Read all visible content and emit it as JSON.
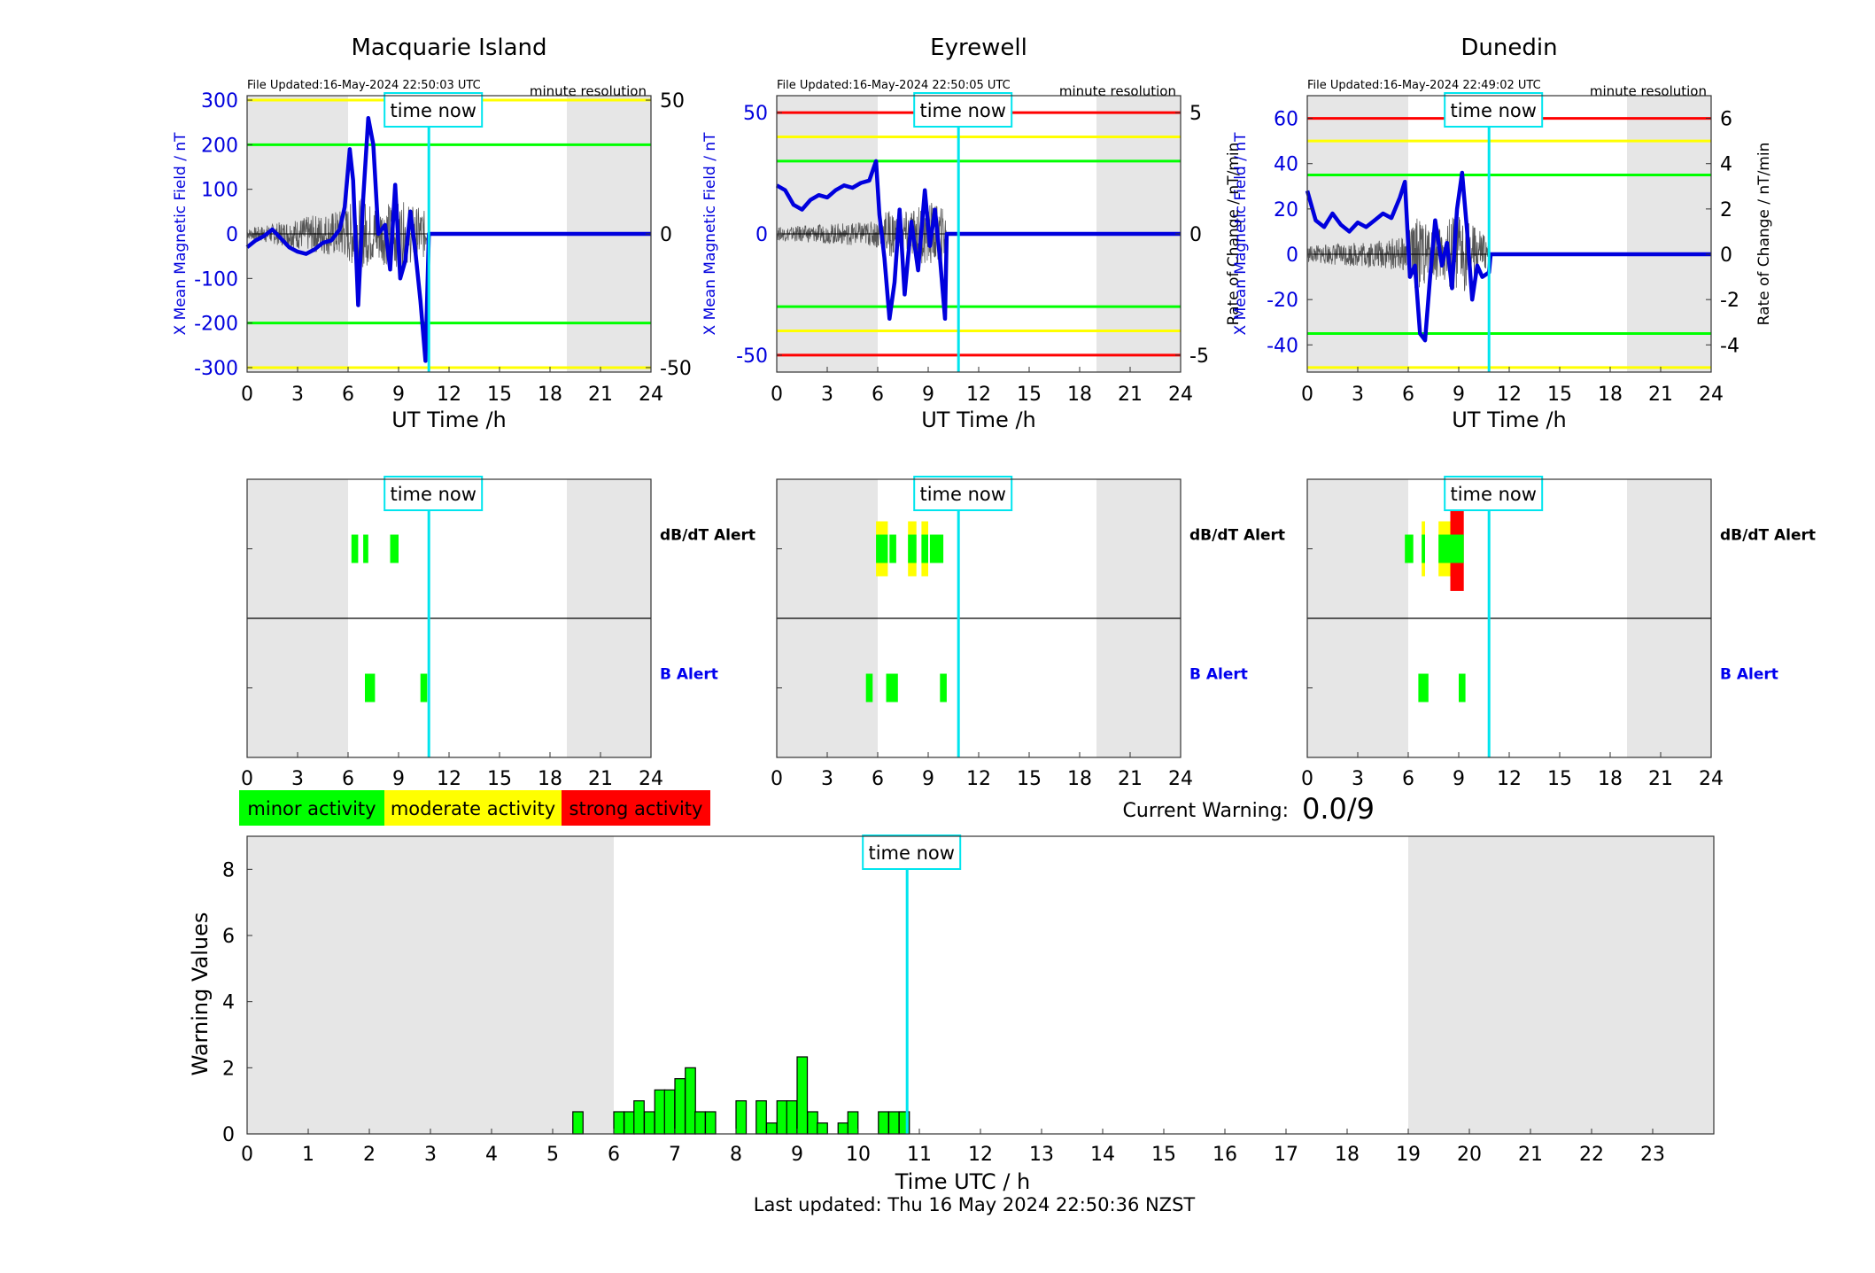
{
  "colors": {
    "night_shade": "#e6e6e6",
    "minor": "#00ff00",
    "moderate": "#ffff00",
    "strong": "#ff0000",
    "x_field": "#0000dd",
    "rate": "#000000",
    "now_line": "#00e5ee"
  },
  "time_now_label": "time now",
  "time_now_hour": 10.8,
  "top_xlabel": "UT Time /h",
  "top_xticks": [
    "0",
    "3",
    "6",
    "9",
    "12",
    "15",
    "18",
    "21",
    "24"
  ],
  "alert_labels": {
    "dbdt": "dB/dT Alert",
    "b": "B Alert"
  },
  "stations": [
    {
      "name": "Macquarie Island",
      "file_updated": "File Updated:16-May-2024 22:50:03 UTC",
      "resolution": "minute resolution",
      "left_label": "X Mean Magnetic Field / nT",
      "right_label": "",
      "left_range": [
        -310,
        310
      ],
      "left_ticks": [
        "300",
        "200",
        "100",
        "0",
        "-100",
        "-200",
        "-300"
      ],
      "left_tick_values": [
        300,
        200,
        100,
        0,
        -100,
        -200,
        -300
      ],
      "right_range": [
        -51.67,
        51.67
      ],
      "right_ticks": [
        "50",
        "0",
        "-50"
      ],
      "right_tick_values": [
        50,
        0,
        -50
      ],
      "night": [
        [
          0,
          6
        ],
        [
          19,
          24
        ]
      ],
      "thresholds": [
        {
          "value": 300,
          "level": "moderate"
        },
        {
          "value": 200,
          "level": "minor"
        },
        {
          "value": -200,
          "level": "minor"
        },
        {
          "value": -300,
          "level": "moderate"
        }
      ],
      "x_field": [
        [
          0,
          -30
        ],
        [
          0.5,
          -15
        ],
        [
          1,
          -5
        ],
        [
          1.5,
          10
        ],
        [
          2,
          -10
        ],
        [
          2.5,
          -30
        ],
        [
          3,
          -40
        ],
        [
          3.5,
          -45
        ],
        [
          4,
          -35
        ],
        [
          4.5,
          -20
        ],
        [
          5,
          -15
        ],
        [
          5.5,
          10
        ],
        [
          5.8,
          60
        ],
        [
          6.1,
          190
        ],
        [
          6.3,
          120
        ],
        [
          6.6,
          -160
        ],
        [
          6.9,
          80
        ],
        [
          7.2,
          260
        ],
        [
          7.5,
          200
        ],
        [
          7.8,
          0
        ],
        [
          8.2,
          20
        ],
        [
          8.5,
          -80
        ],
        [
          8.8,
          110
        ],
        [
          9.1,
          -100
        ],
        [
          9.4,
          -60
        ],
        [
          9.7,
          50
        ],
        [
          10,
          -40
        ],
        [
          10.3,
          -150
        ],
        [
          10.6,
          -285
        ],
        [
          10.8,
          0
        ],
        [
          24,
          0
        ]
      ],
      "rate_band": [
        [
          0,
          6
        ],
        [
          5.8,
          30
        ],
        [
          6.5,
          45
        ],
        [
          7.5,
          35
        ],
        [
          9,
          40
        ],
        [
          10.5,
          30
        ],
        [
          10.8,
          0
        ]
      ],
      "dbdt_alerts": [
        {
          "start": 6.2,
          "end": 6.6,
          "level": "minor"
        },
        {
          "start": 6.9,
          "end": 7.2,
          "level": "minor"
        },
        {
          "start": 8.5,
          "end": 9.0,
          "level": "minor"
        }
      ],
      "b_alerts": [
        {
          "start": 7.0,
          "end": 7.6,
          "level": "minor"
        },
        {
          "start": 10.3,
          "end": 10.7,
          "level": "minor"
        }
      ]
    },
    {
      "name": "Eyrewell",
      "file_updated": "File Updated:16-May-2024 22:50:05 UTC",
      "resolution": "minute resolution",
      "left_label": "X Mean Magnetic Field / nT",
      "right_label": "Rate of Change / nT/min",
      "left_range": [
        -57,
        57
      ],
      "left_ticks": [
        "50",
        "0",
        "-50"
      ],
      "left_tick_values": [
        50,
        0,
        -50
      ],
      "right_range": [
        -5.7,
        5.7
      ],
      "right_ticks": [
        "5",
        "0",
        "-5"
      ],
      "right_tick_values": [
        5,
        0,
        -5
      ],
      "night": [
        [
          0,
          6
        ],
        [
          19,
          24
        ]
      ],
      "thresholds": [
        {
          "value": 50,
          "level": "strong"
        },
        {
          "value": 40,
          "level": "moderate"
        },
        {
          "value": 30,
          "level": "minor"
        },
        {
          "value": -30,
          "level": "minor"
        },
        {
          "value": -40,
          "level": "moderate"
        },
        {
          "value": -50,
          "level": "strong"
        }
      ],
      "x_field": [
        [
          0,
          20
        ],
        [
          0.5,
          18
        ],
        [
          1,
          12
        ],
        [
          1.5,
          10
        ],
        [
          2,
          14
        ],
        [
          2.5,
          16
        ],
        [
          3,
          15
        ],
        [
          3.5,
          18
        ],
        [
          4,
          20
        ],
        [
          4.5,
          19
        ],
        [
          5,
          21
        ],
        [
          5.5,
          22
        ],
        [
          5.9,
          30
        ],
        [
          6.1,
          8
        ],
        [
          6.4,
          -10
        ],
        [
          6.7,
          -35
        ],
        [
          7,
          -20
        ],
        [
          7.3,
          10
        ],
        [
          7.6,
          -25
        ],
        [
          8,
          5
        ],
        [
          8.4,
          -15
        ],
        [
          8.8,
          18
        ],
        [
          9.1,
          -5
        ],
        [
          9.4,
          10
        ],
        [
          9.7,
          -10
        ],
        [
          10,
          -35
        ],
        [
          10.1,
          0
        ],
        [
          24,
          0
        ]
      ],
      "rate_band": [
        [
          0,
          8
        ],
        [
          5.8,
          15
        ],
        [
          6.5,
          30
        ],
        [
          7.5,
          25
        ],
        [
          9,
          40
        ],
        [
          10,
          30
        ],
        [
          10.1,
          0
        ]
      ],
      "dbdt_alerts": [
        {
          "start": 5.9,
          "end": 6.6,
          "level": "moderate"
        },
        {
          "start": 6.7,
          "end": 7.1,
          "level": "minor"
        },
        {
          "start": 7.8,
          "end": 8.3,
          "level": "moderate"
        },
        {
          "start": 8.6,
          "end": 9.0,
          "level": "moderate"
        },
        {
          "start": 9.1,
          "end": 9.9,
          "level": "minor"
        }
      ],
      "b_alerts": [
        {
          "start": 5.3,
          "end": 5.7,
          "level": "minor"
        },
        {
          "start": 6.5,
          "end": 7.2,
          "level": "minor"
        },
        {
          "start": 9.7,
          "end": 10.1,
          "level": "minor"
        }
      ]
    },
    {
      "name": "Dunedin",
      "file_updated": "File Updated:16-May-2024 22:49:02 UTC",
      "resolution": "minute resolution",
      "left_label": "X Mean Magnetic Field / nT",
      "right_label": "Rate of Change / nT/min",
      "left_range": [
        -52,
        70
      ],
      "left_ticks": [
        "60",
        "40",
        "20",
        "0",
        "-20",
        "-40"
      ],
      "left_tick_values": [
        60,
        40,
        20,
        0,
        -20,
        -40
      ],
      "right_range": [
        -5.2,
        7.0
      ],
      "right_ticks": [
        "6",
        "4",
        "2",
        "0",
        "-2",
        "-4"
      ],
      "right_tick_values": [
        6,
        4,
        2,
        0,
        -2,
        -4
      ],
      "night": [
        [
          0,
          6
        ],
        [
          19,
          24
        ]
      ],
      "thresholds": [
        {
          "value": 60,
          "level": "strong"
        },
        {
          "value": 50,
          "level": "moderate"
        },
        {
          "value": 35,
          "level": "minor"
        },
        {
          "value": -35,
          "level": "minor"
        },
        {
          "value": -50,
          "level": "moderate"
        }
      ],
      "x_field": [
        [
          0,
          28
        ],
        [
          0.5,
          15
        ],
        [
          1,
          12
        ],
        [
          1.5,
          18
        ],
        [
          2,
          13
        ],
        [
          2.5,
          10
        ],
        [
          3,
          14
        ],
        [
          3.5,
          12
        ],
        [
          4,
          15
        ],
        [
          4.5,
          18
        ],
        [
          5,
          16
        ],
        [
          5.5,
          25
        ],
        [
          5.8,
          32
        ],
        [
          6.1,
          -10
        ],
        [
          6.4,
          -5
        ],
        [
          6.7,
          -35
        ],
        [
          7,
          -38
        ],
        [
          7.3,
          -10
        ],
        [
          7.6,
          15
        ],
        [
          8,
          -5
        ],
        [
          8.3,
          5
        ],
        [
          8.6,
          -15
        ],
        [
          8.9,
          20
        ],
        [
          9.2,
          36
        ],
        [
          9.5,
          10
        ],
        [
          9.8,
          -20
        ],
        [
          10.1,
          -5
        ],
        [
          10.4,
          -10
        ],
        [
          10.8,
          -8
        ],
        [
          10.9,
          0
        ],
        [
          24,
          0
        ]
      ],
      "rate_band": [
        [
          0,
          10
        ],
        [
          5.8,
          20
        ],
        [
          6.5,
          45
        ],
        [
          7.5,
          30
        ],
        [
          9,
          50
        ],
        [
          10.5,
          25
        ],
        [
          10.9,
          0
        ]
      ],
      "dbdt_alerts": [
        {
          "start": 5.8,
          "end": 6.3,
          "level": "minor"
        },
        {
          "start": 6.8,
          "end": 7.0,
          "level": "moderate"
        },
        {
          "start": 7.8,
          "end": 8.5,
          "level": "moderate"
        },
        {
          "start": 8.5,
          "end": 9.0,
          "level": "strong"
        },
        {
          "start": 9.0,
          "end": 9.3,
          "level": "strong"
        }
      ],
      "b_alerts": [
        {
          "start": 6.6,
          "end": 7.2,
          "level": "minor"
        },
        {
          "start": 9.0,
          "end": 9.4,
          "level": "minor"
        }
      ]
    }
  ],
  "legend": [
    {
      "label": "minor activity",
      "level": "minor"
    },
    {
      "label": "moderate activity",
      "level": "moderate"
    },
    {
      "label": "strong activity",
      "level": "strong"
    }
  ],
  "current_warning": {
    "label": "Current Warning:",
    "value": "0.0/9"
  },
  "chart_data": {
    "type": "bar",
    "xlabel": "Time UTC / h",
    "ylabel": "Warning Values",
    "xlim": [
      0,
      24
    ],
    "ylim": [
      0,
      9
    ],
    "xticks": [
      "0",
      "1",
      "2",
      "3",
      "4",
      "5",
      "6",
      "7",
      "8",
      "9",
      "10",
      "11",
      "12",
      "13",
      "14",
      "15",
      "16",
      "17",
      "18",
      "19",
      "20",
      "21",
      "22",
      "23"
    ],
    "yticks": [
      "0",
      "2",
      "4",
      "6",
      "8"
    ],
    "bin_width_h": 0.1667,
    "night": [
      [
        0,
        6
      ],
      [
        19,
        24
      ]
    ],
    "bars": [
      {
        "x": 5.33,
        "value": 0.67
      },
      {
        "x": 6.0,
        "value": 0.67
      },
      {
        "x": 6.17,
        "value": 0.67
      },
      {
        "x": 6.33,
        "value": 1.0
      },
      {
        "x": 6.5,
        "value": 0.67
      },
      {
        "x": 6.67,
        "value": 1.33
      },
      {
        "x": 6.83,
        "value": 1.33
      },
      {
        "x": 7.0,
        "value": 1.67
      },
      {
        "x": 7.17,
        "value": 2.0
      },
      {
        "x": 7.33,
        "value": 0.67
      },
      {
        "x": 7.5,
        "value": 0.67
      },
      {
        "x": 8.0,
        "value": 1.0
      },
      {
        "x": 8.33,
        "value": 1.0
      },
      {
        "x": 8.5,
        "value": 0.33
      },
      {
        "x": 8.67,
        "value": 1.0
      },
      {
        "x": 8.83,
        "value": 1.0
      },
      {
        "x": 9.0,
        "value": 2.33
      },
      {
        "x": 9.17,
        "value": 0.67
      },
      {
        "x": 9.33,
        "value": 0.33
      },
      {
        "x": 9.67,
        "value": 0.33
      },
      {
        "x": 9.83,
        "value": 0.67
      },
      {
        "x": 10.33,
        "value": 0.67
      },
      {
        "x": 10.5,
        "value": 0.67
      },
      {
        "x": 10.67,
        "value": 0.67
      }
    ],
    "last_updated": "Last updated: Thu 16 May 2024 22:50:36 NZST"
  }
}
